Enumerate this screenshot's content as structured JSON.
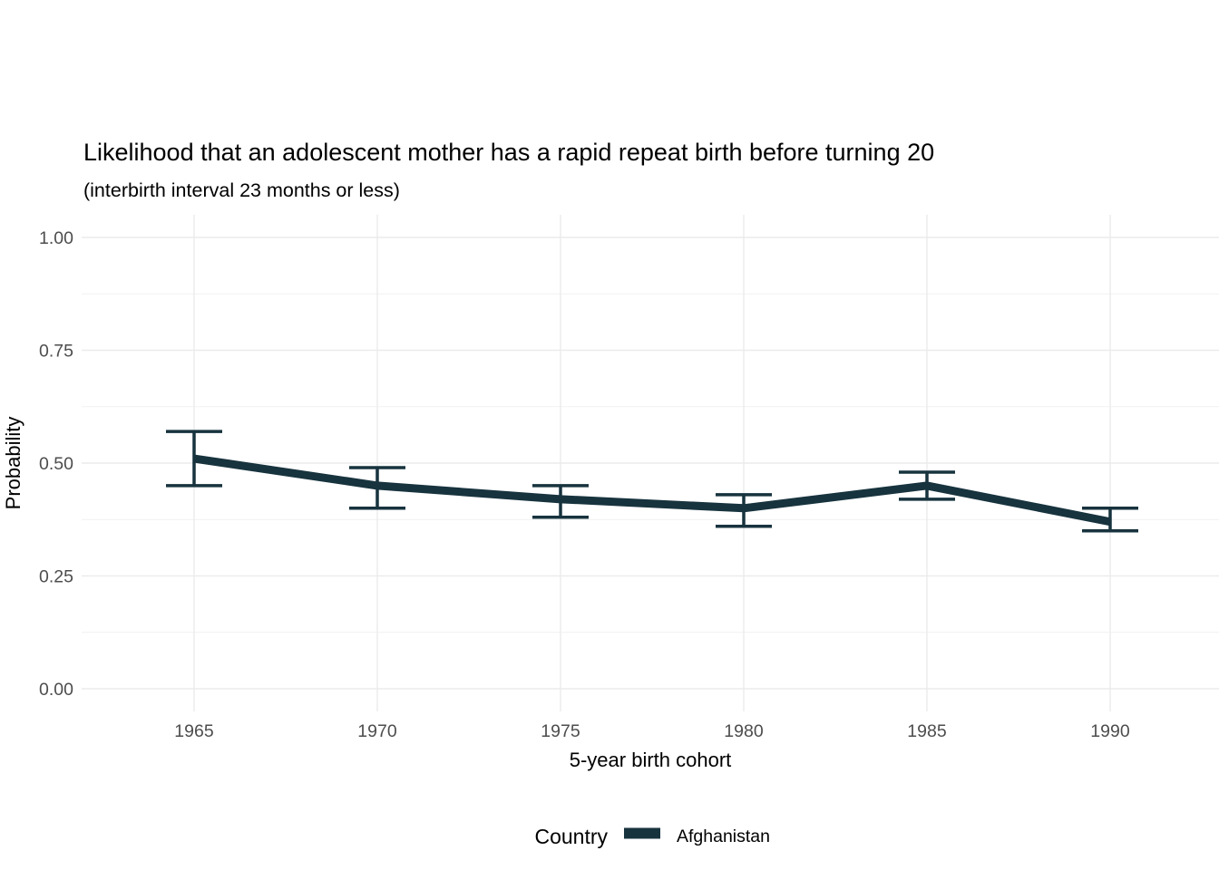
{
  "chart_data": {
    "type": "line",
    "title": "Likelihood that an adolescent mother has a rapid repeat birth before turning 20",
    "subtitle": "(interbirth interval 23 months or less)",
    "xlabel": "5-year birth cohort",
    "ylabel": "Probability",
    "x": [
      1965,
      1970,
      1975,
      1980,
      1985,
      1990
    ],
    "xtick_labels": [
      "1965",
      "1970",
      "1975",
      "1980",
      "1985",
      "1990"
    ],
    "yticks": [
      0,
      0.25,
      0.5,
      0.75,
      1.0
    ],
    "ytick_labels": [
      "0.00",
      "0.25",
      "0.50",
      "0.75",
      "1.00"
    ],
    "yminor": [
      0.125,
      0.375,
      0.625,
      0.875
    ],
    "ylim": [
      0,
      1
    ],
    "xlim": [
      1962,
      1993
    ],
    "grid": "on",
    "legend_position": "bottom",
    "legend_title": "Country",
    "series": [
      {
        "name": "Afghanistan",
        "values": [
          0.51,
          0.45,
          0.42,
          0.4,
          0.45,
          0.37
        ],
        "ci_low": [
          0.45,
          0.4,
          0.38,
          0.36,
          0.42,
          0.35
        ],
        "ci_high": [
          0.57,
          0.49,
          0.45,
          0.43,
          0.48,
          0.4
        ],
        "color": "#17333e"
      }
    ]
  },
  "colors": {
    "line": "#17333e",
    "grid_major": "#ebebeb",
    "grid_minor": "#f1f1f1",
    "axis_text": "#4d4d4d",
    "title_text": "#000000",
    "background": "#ffffff"
  }
}
